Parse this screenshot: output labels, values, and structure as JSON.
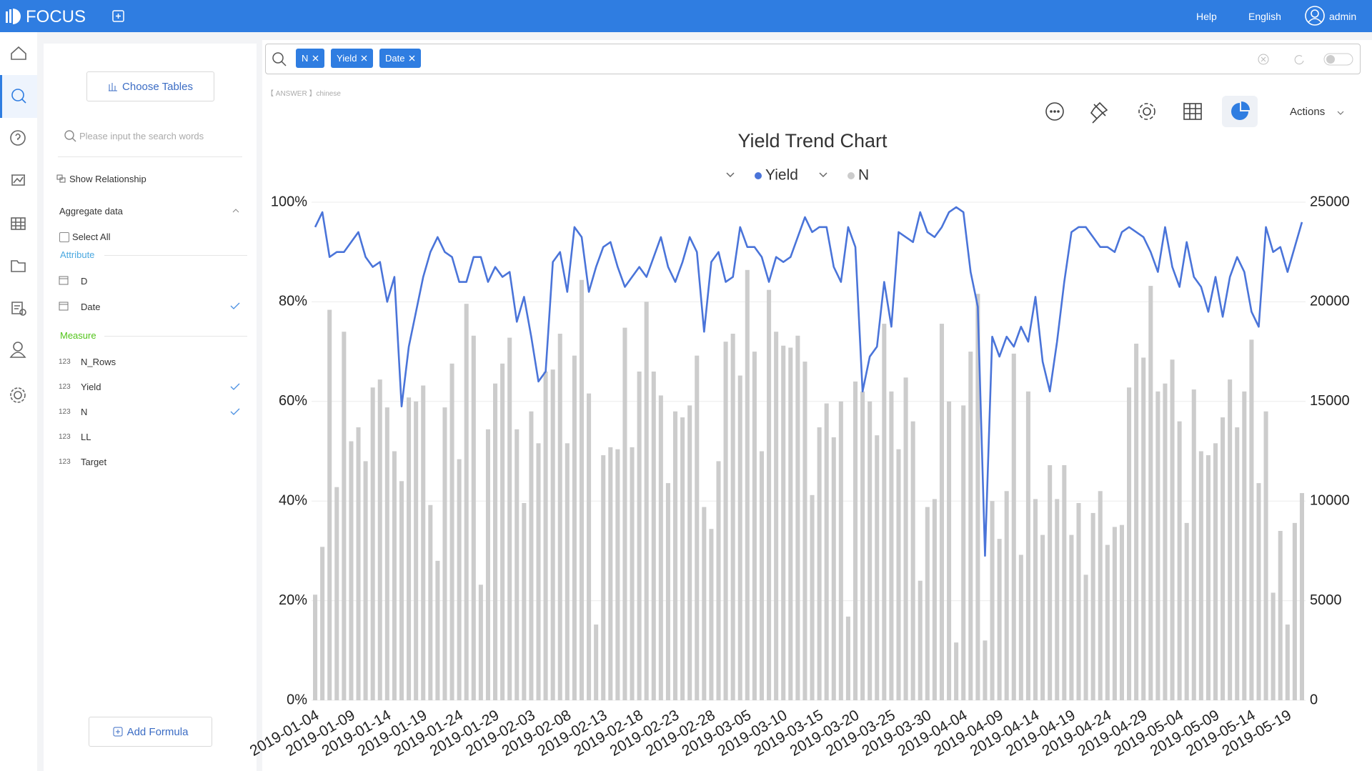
{
  "ui": {
    "brand": "FOCUS",
    "nav": {
      "help": "Help",
      "language": "English",
      "user": "admin"
    },
    "search": {
      "tokens": [
        "N",
        "Yield",
        "Date"
      ],
      "hint": "【 ANSWER 】chinese"
    },
    "panel": {
      "choose_tables": "Choose Tables",
      "search_placeholder": "Please input the search words",
      "show_relationship": "Show Relationship",
      "aggregate": "Aggregate data",
      "select_all": "Select All",
      "attribute_title": "Attribute",
      "attributes": [
        "D",
        "Date"
      ],
      "measure_title": "Measure",
      "measures": [
        "N_Rows",
        "Yield",
        "N",
        "LL",
        "Target"
      ],
      "type_tag": "123",
      "add_formula": "Add Formula"
    },
    "toolbar": {
      "actions": "Actions"
    }
  },
  "chart_data": {
    "type": "combo",
    "title": "Yield Trend Chart",
    "categories": [
      "2019-01-04",
      null,
      null,
      null,
      null,
      "2019-01-09",
      null,
      null,
      null,
      null,
      "2019-01-14",
      null,
      null,
      null,
      null,
      "2019-01-19",
      null,
      null,
      null,
      null,
      "2019-01-24",
      null,
      null,
      null,
      null,
      "2019-01-29",
      null,
      null,
      null,
      null,
      "2019-02-03",
      null,
      null,
      null,
      null,
      "2019-02-08",
      null,
      null,
      null,
      null,
      "2019-02-13",
      null,
      null,
      null,
      null,
      "2019-02-18",
      null,
      null,
      null,
      null,
      "2019-02-23",
      null,
      null,
      null,
      null,
      "2019-02-28",
      null,
      null,
      null,
      null,
      "2019-03-05",
      null,
      null,
      null,
      null,
      "2019-03-10",
      null,
      null,
      null,
      null,
      "2019-03-15",
      null,
      null,
      null,
      null,
      "2019-03-20",
      null,
      null,
      null,
      null,
      "2019-03-25",
      null,
      null,
      null,
      null,
      "2019-03-30",
      null,
      null,
      null,
      null,
      "2019-04-04",
      null,
      null,
      null,
      null,
      "2019-04-09",
      null,
      null,
      null,
      null,
      "2019-04-14",
      null,
      null,
      null,
      null,
      "2019-04-19",
      null,
      null,
      null,
      null,
      "2019-04-24",
      null,
      null,
      null,
      null,
      "2019-04-29",
      null,
      null,
      null,
      null,
      "2019-05-04",
      null,
      null,
      null,
      null,
      "2019-05-09",
      null,
      null,
      null,
      null,
      "2019-05-14",
      null,
      null,
      null,
      null,
      "2019-05-19",
      null,
      null
    ],
    "series": [
      {
        "name": "Yield",
        "type": "line",
        "color": "#4a74d9",
        "values": [
          95,
          98,
          89,
          90,
          90,
          92,
          94,
          89,
          87,
          88,
          80,
          85,
          59,
          71,
          78,
          85,
          90,
          93,
          90,
          89,
          84,
          84,
          89,
          89,
          84,
          87,
          85,
          86,
          76,
          81,
          73,
          64,
          66,
          88,
          90,
          82,
          95,
          93,
          82,
          87,
          91,
          92,
          87,
          83,
          85,
          87,
          85,
          89,
          93,
          87,
          84,
          88,
          93,
          90,
          74,
          88,
          90,
          84,
          85,
          95,
          91,
          91,
          89,
          84,
          89,
          88,
          89,
          93,
          97,
          94,
          95,
          95,
          87,
          84,
          95,
          91,
          62,
          69,
          71,
          84,
          75,
          94,
          93,
          92,
          98,
          94,
          93,
          95,
          98,
          99,
          98,
          86,
          79,
          29,
          73,
          69,
          73,
          71,
          75,
          72,
          81,
          68,
          62,
          72,
          84,
          94,
          95,
          95,
          93,
          91,
          91,
          90,
          94,
          95,
          94,
          93,
          90,
          86,
          95,
          87,
          83,
          92,
          85,
          83,
          78,
          85,
          77,
          85,
          89,
          86,
          78,
          75,
          95,
          90,
          91,
          86,
          91,
          96
        ]
      },
      {
        "name": "N",
        "type": "bar",
        "axis": "y2",
        "color": "#cccccc",
        "values": [
          5300,
          7700,
          19600,
          10700,
          18500,
          13000,
          13700,
          12000,
          15700,
          16100,
          14700,
          12500,
          11000,
          15200,
          15000,
          15800,
          9800,
          7000,
          14700,
          16900,
          12100,
          19900,
          18300,
          5800,
          13600,
          15900,
          16900,
          18200,
          13600,
          9900,
          14500,
          12900,
          16500,
          16600,
          18400,
          12900,
          17300,
          21100,
          15400,
          3800,
          12300,
          12700,
          12600,
          18700,
          12700,
          16500,
          20000,
          16500,
          15300,
          10900,
          14500,
          14200,
          14800,
          17300,
          9700,
          8600,
          12000,
          18000,
          18400,
          16300,
          21600,
          17500,
          12500,
          20600,
          18500,
          17800,
          17700,
          18300,
          17000,
          10300,
          13700,
          14900,
          13200,
          15000,
          4200,
          16000,
          15500,
          15000,
          13300,
          18900,
          15500,
          12600,
          16200,
          14000,
          6000,
          9700,
          10100,
          18900,
          15000,
          2900,
          14800,
          17500,
          20400,
          3000,
          10000,
          8100,
          10500,
          17400,
          7300,
          15500,
          10100,
          8300,
          11800,
          10100,
          11800,
          8300,
          9900,
          6300,
          9400,
          10500,
          7800,
          8700,
          8800,
          15700,
          17900,
          17200,
          20800,
          15500,
          15900,
          17100,
          14000,
          8900,
          15600,
          12500,
          12300,
          12900,
          14200,
          16100,
          13700,
          15500,
          18100,
          10900,
          14500,
          5400,
          8500,
          3800,
          8900,
          10400
        ]
      }
    ],
    "ylim": [
      0,
      100
    ],
    "yticks": [
      {
        "value": 0,
        "label": "0%"
      },
      {
        "value": 20,
        "label": "20%"
      },
      {
        "value": 40,
        "label": "40%"
      },
      {
        "value": 60,
        "label": "60%"
      },
      {
        "value": 80,
        "label": "80%"
      },
      {
        "value": 100,
        "label": "100%"
      }
    ],
    "y2lim": [
      0,
      25000
    ],
    "y2ticks": [
      0,
      5000,
      10000,
      15000,
      20000,
      25000
    ],
    "grid": true
  }
}
